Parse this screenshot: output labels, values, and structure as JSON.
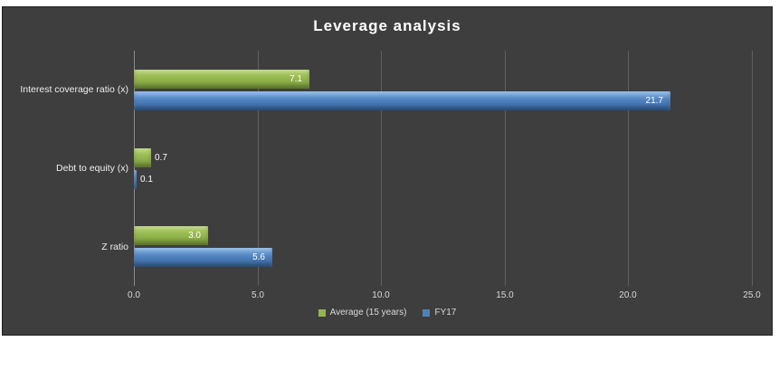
{
  "title": "Leverage analysis",
  "chart_data": {
    "type": "bar",
    "orientation": "horizontal",
    "title": "Leverage analysis",
    "categories": [
      "Interest coverage ratio (x)",
      "Debt to equity (x)",
      "Z ratio"
    ],
    "series": [
      {
        "name": "Average (15 years)",
        "color": "#94b64e",
        "values": [
          7.1,
          0.7,
          3.0
        ]
      },
      {
        "name": "FY17",
        "color": "#4e80bd",
        "values": [
          21.7,
          0.1,
          5.6
        ]
      }
    ],
    "xlim": [
      0,
      25
    ],
    "xticks": [
      "0.0",
      "5.0",
      "10.0",
      "15.0",
      "20.0",
      "25.0"
    ],
    "grid": "vertical",
    "legend_position": "bottom",
    "background_color": "#3e3e3e",
    "text_color": "#ffffff"
  }
}
